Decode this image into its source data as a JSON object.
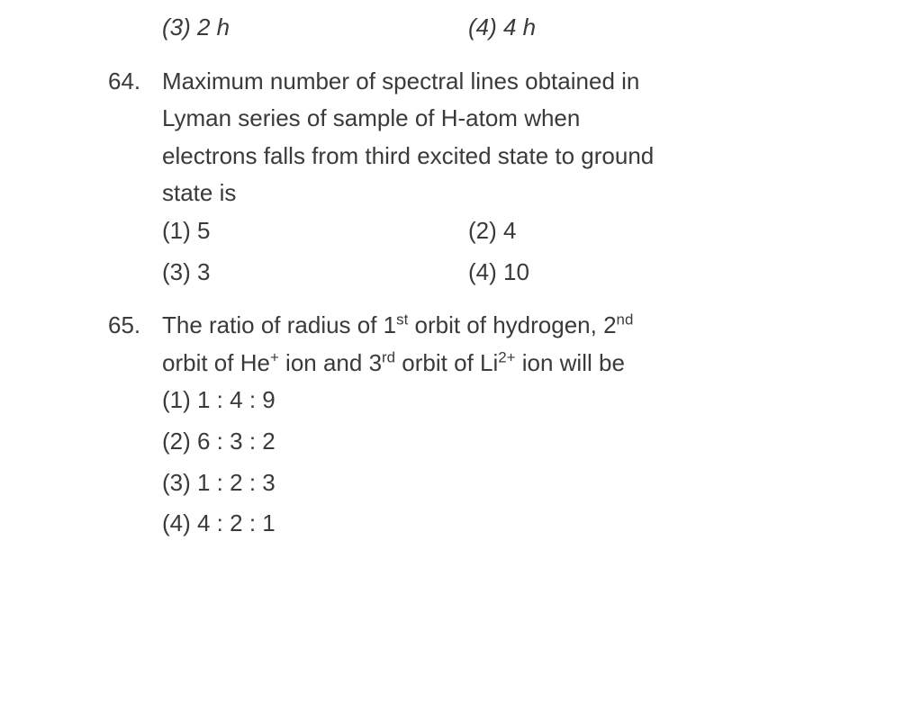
{
  "prev": {
    "opt3": "(3)  2 h",
    "opt4": "(4)  4 h"
  },
  "q64": {
    "num": "64.",
    "text_l1": "Maximum number of spectral lines obtained in",
    "text_l2": "Lyman series of sample of H-atom when",
    "text_l3": "electrons falls from third excited state to ground",
    "text_l4": "state is",
    "opt1": "(1)  5",
    "opt2": "(2)  4",
    "opt3": "(3)  3",
    "opt4": "(4)  10"
  },
  "q65": {
    "num": "65.",
    "text_a": "The ratio of radius of 1",
    "text_b": " orbit of hydrogen, 2",
    "text_c": "orbit of He",
    "text_d": " ion and 3",
    "text_e": " orbit of Li",
    "text_f": " ion will be",
    "sup_st": "st",
    "sup_nd": "nd",
    "sup_rd": "rd",
    "sup_plus": "+",
    "sup_2plus": "2+",
    "opt1": "(1)  1 : 4 : 9",
    "opt2": "(2)  6 : 3 : 2",
    "opt3": "(3)  1 : 2 : 3",
    "opt4": "(4)  4 : 2 : 1"
  }
}
